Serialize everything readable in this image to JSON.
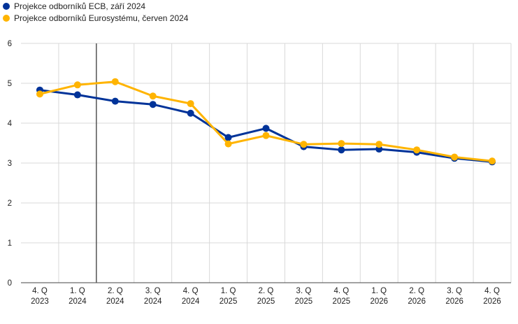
{
  "chart_data": {
    "type": "line",
    "categories": [
      [
        "4. Q",
        "2023"
      ],
      [
        "1. Q",
        "2024"
      ],
      [
        "2. Q",
        "2024"
      ],
      [
        "3. Q",
        "2024"
      ],
      [
        "4. Q",
        "2024"
      ],
      [
        "1. Q",
        "2025"
      ],
      [
        "2. Q",
        "2025"
      ],
      [
        "3. Q",
        "2025"
      ],
      [
        "4. Q",
        "2025"
      ],
      [
        "1. Q",
        "2026"
      ],
      [
        "2. Q",
        "2026"
      ],
      [
        "3. Q",
        "2026"
      ],
      [
        "4. Q",
        "2026"
      ]
    ],
    "series": [
      {
        "name": "Projekce odborníků ECB, září 2024",
        "color": "#003399",
        "values": [
          4.83,
          4.71,
          4.55,
          4.47,
          4.25,
          3.64,
          3.87,
          3.41,
          3.33,
          3.35,
          3.27,
          3.12,
          3.03
        ]
      },
      {
        "name": "Projekce odborníků Eurosystému, červen 2024",
        "color": "#FFB400",
        "values": [
          4.73,
          4.96,
          5.04,
          4.68,
          4.49,
          3.48,
          3.69,
          3.47,
          3.49,
          3.47,
          3.33,
          3.15,
          3.05
        ]
      }
    ],
    "ylim": [
      0,
      6
    ],
    "yticks": [
      0,
      1,
      2,
      3,
      4,
      5,
      6
    ],
    "grid": true,
    "vertical_marker_after_category": 1,
    "legend_position": "top-left",
    "title": "",
    "xlabel": "",
    "ylabel": ""
  }
}
